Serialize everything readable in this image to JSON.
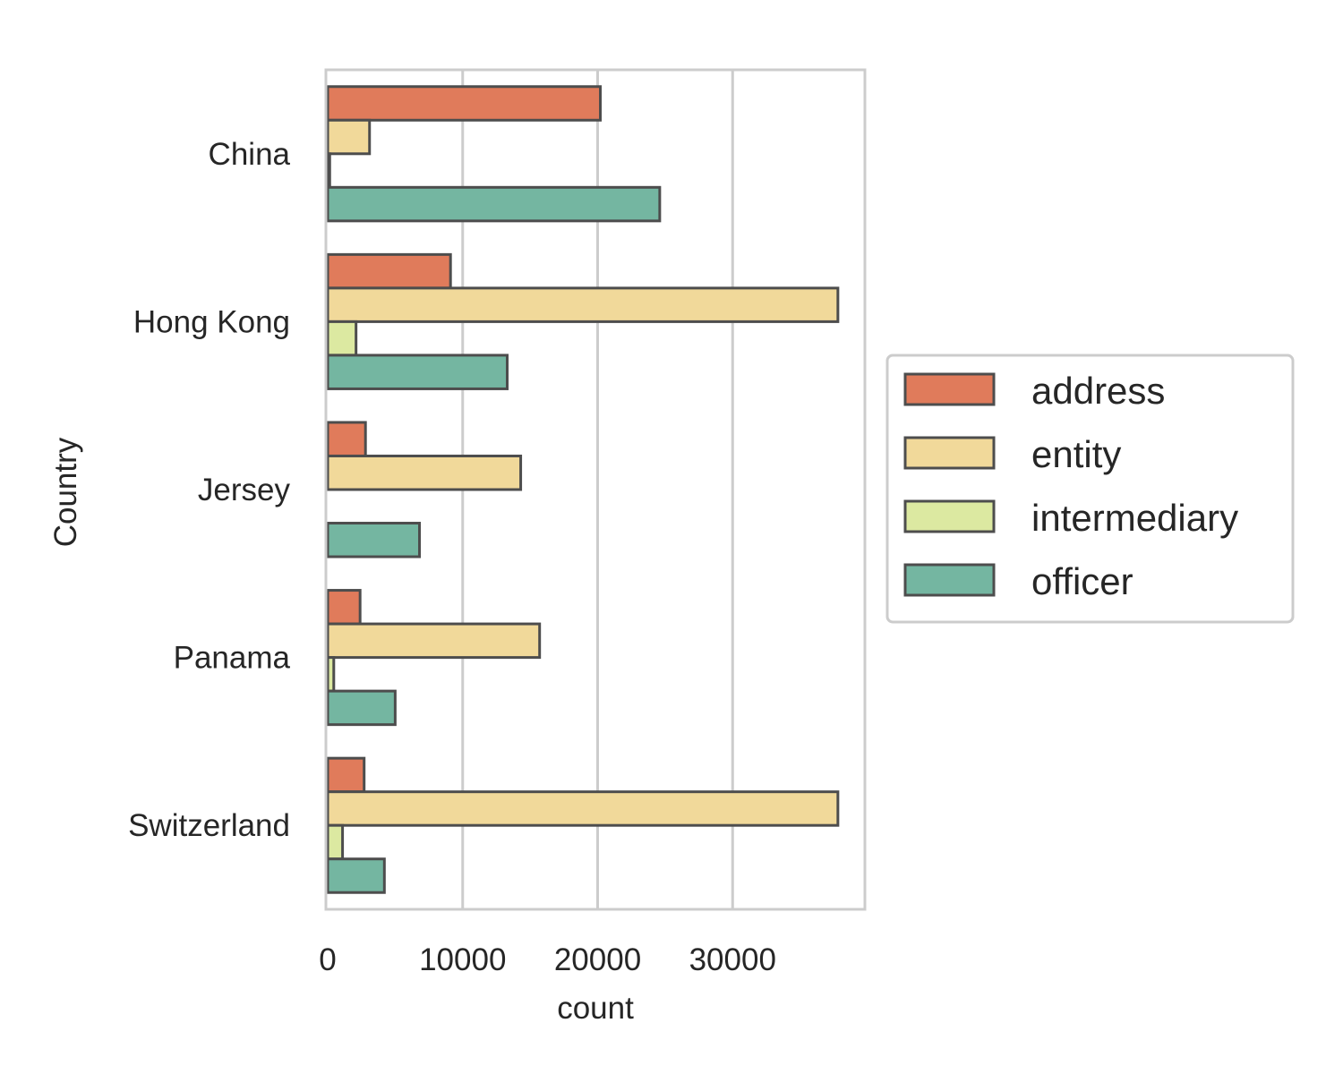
{
  "chart_data": {
    "type": "bar",
    "orientation": "horizontal",
    "categories": [
      "China",
      "Hong Kong",
      "Jersey",
      "Panama",
      "Switzerland"
    ],
    "series": [
      {
        "name": "address",
        "color": "#e07b5b",
        "values": [
          20200,
          9100,
          2800,
          2400,
          2700
        ]
      },
      {
        "name": "entity",
        "color": "#f1d99a",
        "values": [
          3100,
          37800,
          14300,
          15700,
          37800
        ]
      },
      {
        "name": "intermediary",
        "color": "#dce9a1",
        "values": [
          150,
          2100,
          0,
          450,
          1100
        ]
      },
      {
        "name": "officer",
        "color": "#74b6a1",
        "values": [
          24600,
          13300,
          6800,
          5000,
          4200
        ]
      }
    ],
    "xlabel": "count",
    "ylabel": "Country",
    "xlim": [
      0,
      39800
    ],
    "xticks": [
      0,
      10000,
      20000,
      30000
    ],
    "grid": "vertical",
    "legend_position": "right"
  }
}
